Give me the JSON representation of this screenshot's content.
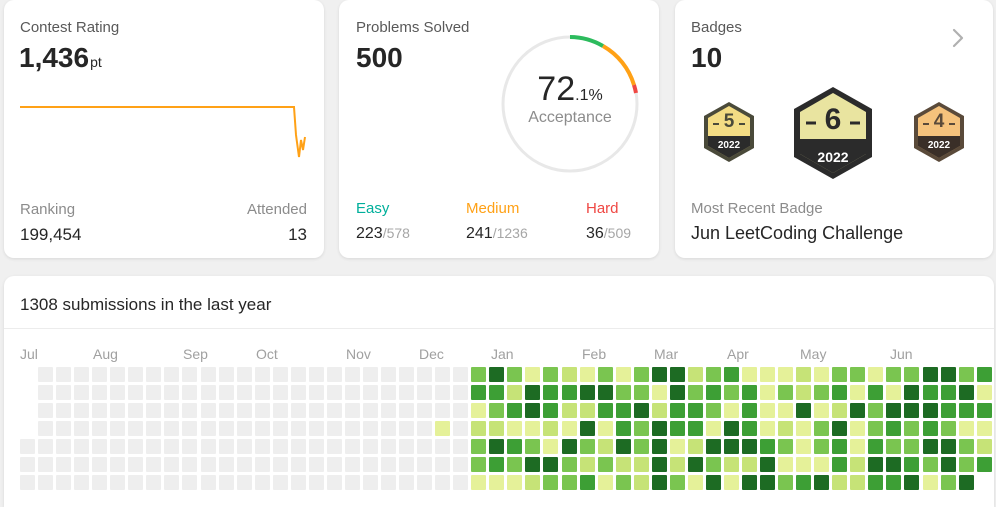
{
  "contest": {
    "title": "Contest Rating",
    "rating": "1,436",
    "rating_unit": "pt",
    "ranking_label": "Ranking",
    "ranking_value": "199,454",
    "attended_label": "Attended",
    "attended_value": "13"
  },
  "problems": {
    "title": "Problems Solved",
    "solved": "500",
    "acceptance_int": "72",
    "acceptance_dec": ".1",
    "acceptance_pct": "%",
    "acceptance_label": "Acceptance",
    "easy": {
      "label": "Easy",
      "solved": "223",
      "total": "/578",
      "color": "#00af9b"
    },
    "medium": {
      "label": "Medium",
      "solved": "241",
      "total": "/1236",
      "color": "#ffb800"
    },
    "hard": {
      "label": "Hard",
      "solved": "36",
      "total": "/509",
      "color": "#ef4743"
    }
  },
  "badges": {
    "title": "Badges",
    "count": "10",
    "recent_label": "Most Recent Badge",
    "recent_name": "Jun LeetCoding Challenge",
    "items": [
      {
        "number": "5",
        "year": "2022",
        "name": "badge-5-icon"
      },
      {
        "number": "6",
        "year": "2022",
        "name": "badge-6-icon"
      },
      {
        "number": "4",
        "year": "2022",
        "name": "badge-4-icon"
      }
    ]
  },
  "submissions": {
    "header": "1308 submissions in the last year",
    "months": [
      "Jul",
      "Aug",
      "Sep",
      "Oct",
      "Nov",
      "Dec",
      "Jan",
      "Feb",
      "Mar",
      "Apr",
      "May",
      "Jun"
    ],
    "colors": [
      "#eeeeee",
      "#e5f199",
      "#c6e377",
      "#7ac550",
      "#3d9f35",
      "#1d6b23"
    ]
  }
}
